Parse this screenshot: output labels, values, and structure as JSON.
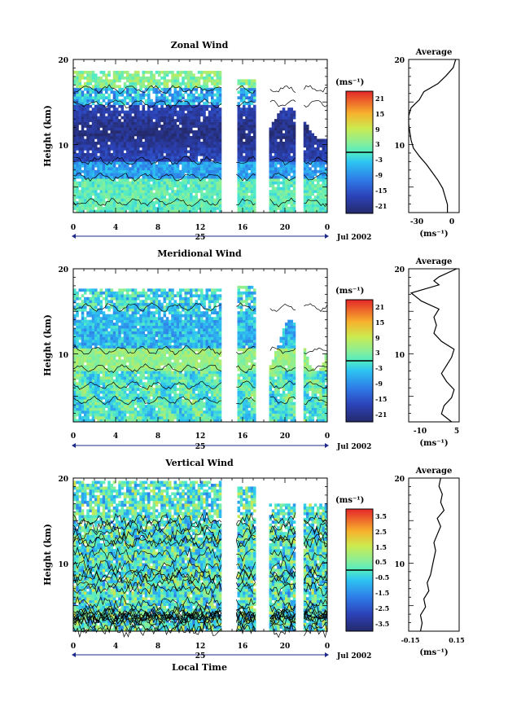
{
  "chart_data": [
    {
      "type": "heatmap",
      "title": "Zonal Wind",
      "ylabel": "Height (km)",
      "units": "(ms⁻¹)",
      "xlim": [
        0,
        24
      ],
      "ylim": [
        2,
        20
      ],
      "xticks": [
        "0",
        "4",
        "8",
        "12",
        "16",
        "20",
        "0"
      ],
      "yticks": [
        "10",
        "20"
      ],
      "date_day": "25",
      "date_label": "Jul 2002",
      "colorbar": {
        "ticks": [
          "21",
          "15",
          "9",
          "3",
          "-3",
          "-9",
          "-15",
          "-21"
        ],
        "min": -24,
        "max": 24
      },
      "profile_title": "Average",
      "profile_xticks": [
        "-30",
        "0"
      ],
      "profile_xlim": [
        -35,
        8
      ],
      "profile_units": "(ms⁻¹)",
      "profile_yticks": [
        "10",
        "20"
      ],
      "profile": [
        [
          1,
          -2
        ],
        [
          2,
          -2
        ],
        [
          3,
          -4
        ],
        [
          4,
          -6
        ],
        [
          5,
          -10
        ],
        [
          6,
          -15
        ],
        [
          7,
          -20
        ],
        [
          8,
          -26
        ],
        [
          9,
          -31
        ],
        [
          10,
          -33
        ],
        [
          11,
          -34
        ],
        [
          12,
          -35
        ],
        [
          13,
          -35
        ],
        [
          14,
          -33
        ],
        [
          15,
          -26
        ],
        [
          16,
          -22
        ],
        [
          17,
          -10
        ],
        [
          18,
          -3
        ],
        [
          19,
          3
        ],
        [
          20,
          5
        ]
      ]
    },
    {
      "type": "heatmap",
      "title": "Meridional Wind",
      "ylabel": "Height (km)",
      "units": "(ms⁻¹)",
      "xlim": [
        0,
        24
      ],
      "ylim": [
        2,
        20
      ],
      "xticks": [
        "0",
        "4",
        "8",
        "12",
        "16",
        "20",
        "0"
      ],
      "yticks": [
        "10",
        "20"
      ],
      "date_day": "25",
      "date_label": "Jul 2002",
      "colorbar": {
        "ticks": [
          "21",
          "15",
          "9",
          "3",
          "-3",
          "-9",
          "-15",
          "-21"
        ],
        "min": -24,
        "max": 24
      },
      "profile_title": "Average",
      "profile_xticks": [
        "-10",
        "5"
      ],
      "profile_xlim": [
        -14,
        6
      ],
      "profile_units": "(ms⁻¹)",
      "profile_yticks": [
        "10",
        "20"
      ],
      "profile": [
        [
          1,
          3
        ],
        [
          2,
          -1
        ],
        [
          3,
          0
        ],
        [
          4,
          3
        ],
        [
          5,
          4
        ],
        [
          6,
          1
        ],
        [
          7,
          -1
        ],
        [
          8,
          1
        ],
        [
          9,
          3
        ],
        [
          10,
          4
        ],
        [
          11,
          -1
        ],
        [
          12,
          -4
        ],
        [
          13,
          -3
        ],
        [
          14,
          -4
        ],
        [
          15,
          -2
        ],
        [
          16,
          -9
        ],
        [
          17,
          -13
        ],
        [
          18,
          -2
        ],
        [
          18.5,
          -4
        ],
        [
          19,
          -2
        ],
        [
          20,
          5
        ]
      ]
    },
    {
      "type": "heatmap",
      "title": "Vertical Wind",
      "ylabel": "Height (km)",
      "xlabel": "Local Time",
      "units": "(ms⁻¹)",
      "xlim": [
        0,
        24
      ],
      "ylim": [
        2,
        20
      ],
      "xticks": [
        "0",
        "4",
        "8",
        "12",
        "16",
        "20",
        "0"
      ],
      "yticks": [
        "10",
        "20"
      ],
      "date_day": "25",
      "date_label": "Jul 2002",
      "colorbar": {
        "ticks": [
          "3.5",
          "2.5",
          "1.5",
          "0.5",
          "-0.5",
          "-1.5",
          "-2.5",
          "-3.5"
        ],
        "min": -4,
        "max": 4
      },
      "profile_title": "Average",
      "profile_xticks": [
        "-0.15",
        "0.15"
      ],
      "profile_xlim": [
        -0.15,
        0.15
      ],
      "profile_units": "(ms⁻¹)",
      "profile_yticks": [
        "10",
        "20"
      ],
      "profile": [
        [
          1,
          -0.08
        ],
        [
          2,
          -0.07
        ],
        [
          3,
          -0.08
        ],
        [
          4,
          -0.05
        ],
        [
          5,
          -0.06
        ],
        [
          6,
          -0.03
        ],
        [
          7,
          -0.04
        ],
        [
          8,
          -0.02
        ],
        [
          9,
          -0.01
        ],
        [
          10,
          0.0
        ],
        [
          11,
          0.01
        ],
        [
          12,
          0.0
        ],
        [
          13,
          0.02
        ],
        [
          14,
          0.04
        ],
        [
          15,
          0.02
        ],
        [
          16,
          0.06
        ],
        [
          17,
          0.04
        ],
        [
          18,
          0.05
        ],
        [
          19,
          0.03
        ],
        [
          20,
          0.04
        ]
      ]
    }
  ]
}
